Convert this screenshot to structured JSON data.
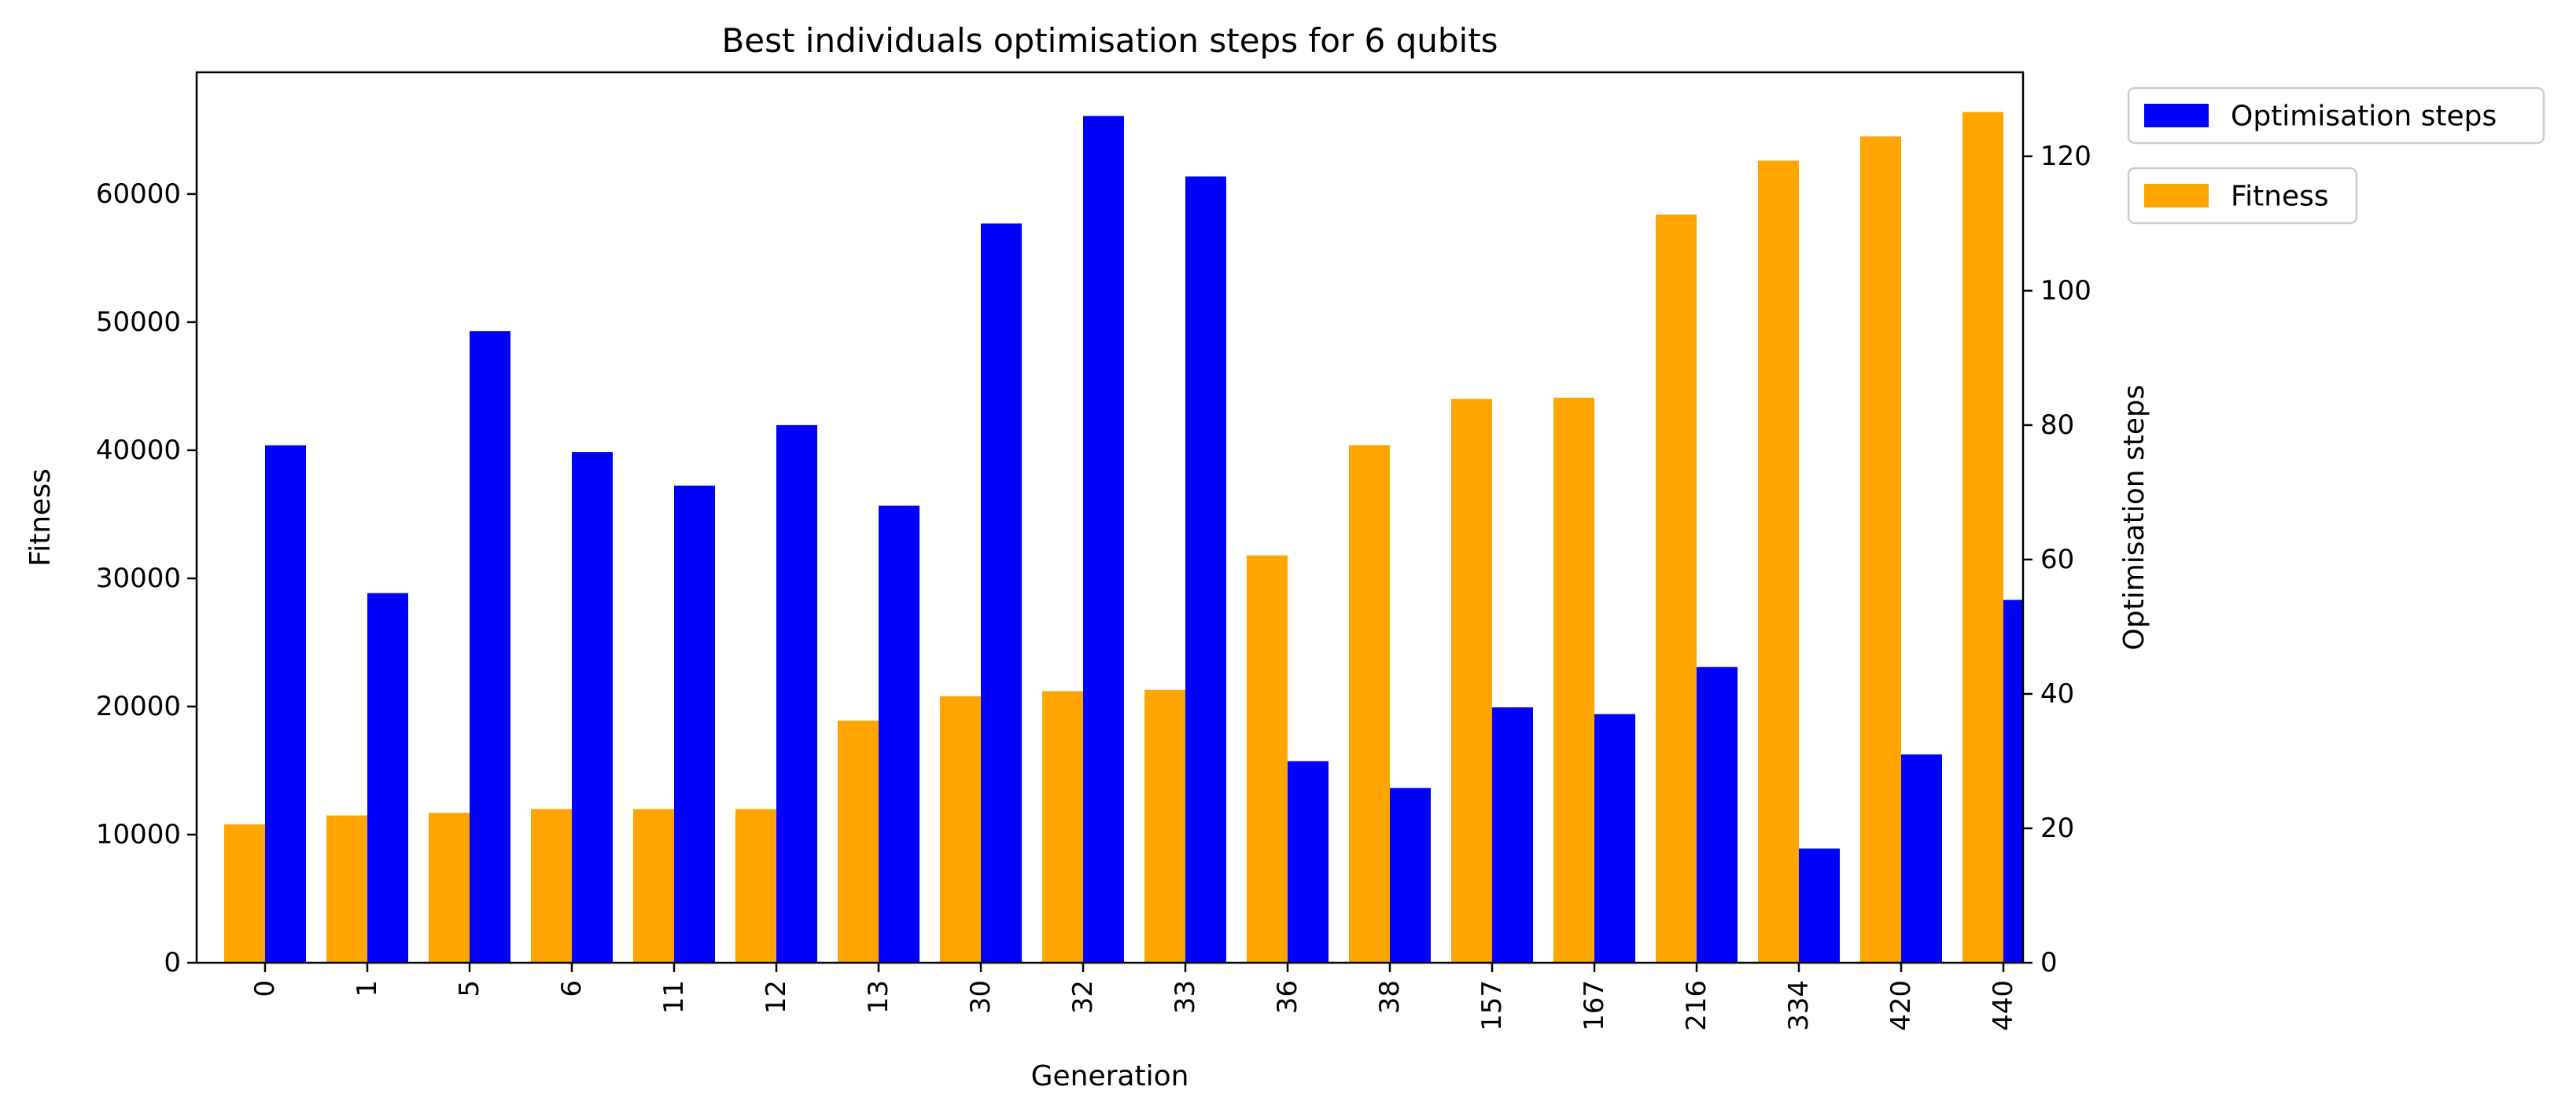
{
  "chart_data": {
    "type": "bar",
    "title": "Best individuals optimisation steps for 6 qubits",
    "xlabel": "Generation",
    "ylabel_left": "Fitness",
    "ylabel_right": "Optimisation steps",
    "categories": [
      "0",
      "1",
      "5",
      "6",
      "11",
      "12",
      "13",
      "30",
      "32",
      "33",
      "36",
      "38",
      "157",
      "167",
      "216",
      "334",
      "420",
      "440"
    ],
    "ylim_left": [
      0,
      69500
    ],
    "ylim_right": [
      0,
      132.5
    ],
    "yticks_left": [
      0,
      10000,
      20000,
      30000,
      40000,
      50000,
      60000
    ],
    "yticks_right": [
      0,
      20,
      40,
      60,
      80,
      100,
      120
    ],
    "series": [
      {
        "name": "Fitness",
        "axis": "left",
        "color": "#FFA500",
        "values": [
          10800,
          11500,
          11700,
          12000,
          12000,
          12000,
          18900,
          20800,
          21200,
          21300,
          31800,
          40400,
          44000,
          44100,
          58400,
          62600,
          64500,
          66400
        ]
      },
      {
        "name": "Optimisation steps",
        "axis": "right",
        "color": "#0000FF",
        "values": [
          77,
          55,
          94,
          76,
          71,
          80,
          68,
          110,
          126,
          117,
          30,
          26,
          38,
          37,
          44,
          17,
          31,
          54
        ]
      }
    ],
    "legend": {
      "placement": "outside-top-right",
      "entries": [
        "Optimisation steps",
        "Fitness"
      ]
    },
    "grid": false
  }
}
